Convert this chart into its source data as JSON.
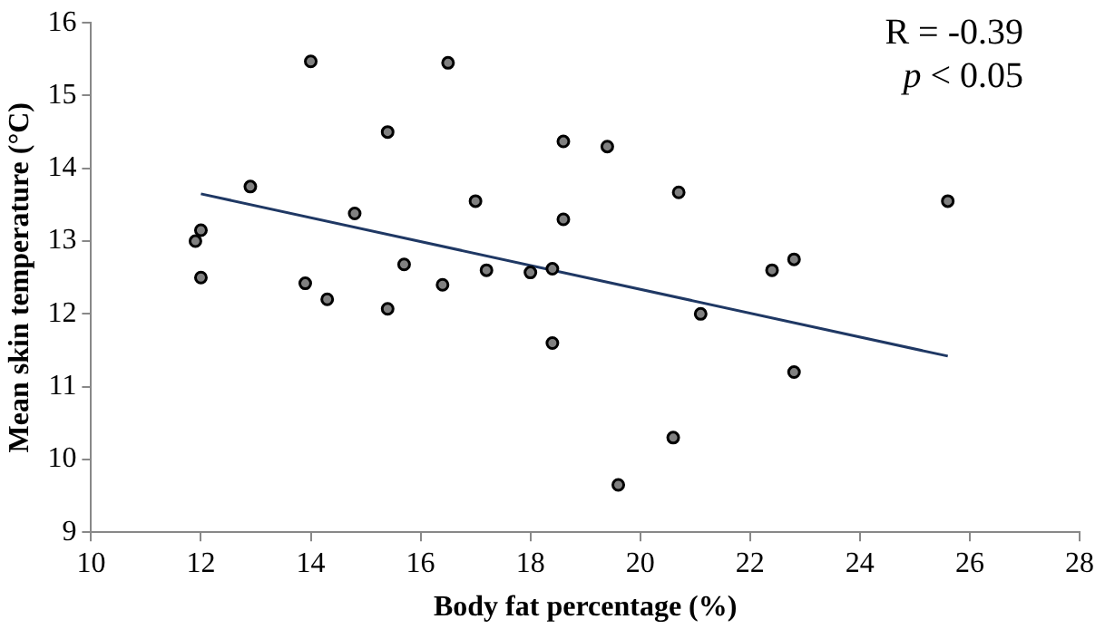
{
  "chart_data": {
    "type": "scatter",
    "xlabel": "Body fat percentage (%)",
    "ylabel": "Mean skin temperature (°C)",
    "xlim": [
      10,
      28
    ],
    "xticks": [
      10,
      12,
      14,
      16,
      18,
      20,
      22,
      24,
      26,
      28
    ],
    "ylim": [
      9,
      16
    ],
    "yticks": [
      9,
      10,
      11,
      12,
      13,
      14,
      15,
      16
    ],
    "grid": false,
    "legend": false,
    "marker": "circle",
    "annotations": [
      "R = -0.39",
      "p < 0.05"
    ],
    "series": [
      {
        "type": "scatter",
        "color": "#808080",
        "x": [
          11.9,
          12.0,
          12.0,
          12.9,
          13.9,
          14.0,
          14.3,
          14.8,
          15.4,
          15.4,
          15.7,
          16.4,
          16.5,
          17.0,
          17.2,
          18.0,
          18.4,
          18.4,
          18.6,
          18.6,
          19.4,
          19.6,
          20.6,
          20.7,
          21.1,
          22.4,
          22.8,
          22.8,
          25.6
        ],
        "values": [
          13.0,
          13.15,
          12.5,
          13.75,
          12.42,
          15.47,
          12.2,
          13.38,
          14.5,
          12.07,
          12.68,
          12.4,
          15.45,
          13.55,
          12.6,
          12.57,
          12.62,
          11.6,
          14.37,
          13.3,
          14.3,
          9.65,
          10.3,
          13.67,
          12.0,
          12.6,
          12.75,
          11.2,
          13.55
        ]
      },
      {
        "type": "line",
        "color": "#1f3864",
        "marker": "none",
        "x": [
          12.0,
          25.6
        ],
        "values": [
          13.65,
          11.42
        ]
      }
    ]
  }
}
